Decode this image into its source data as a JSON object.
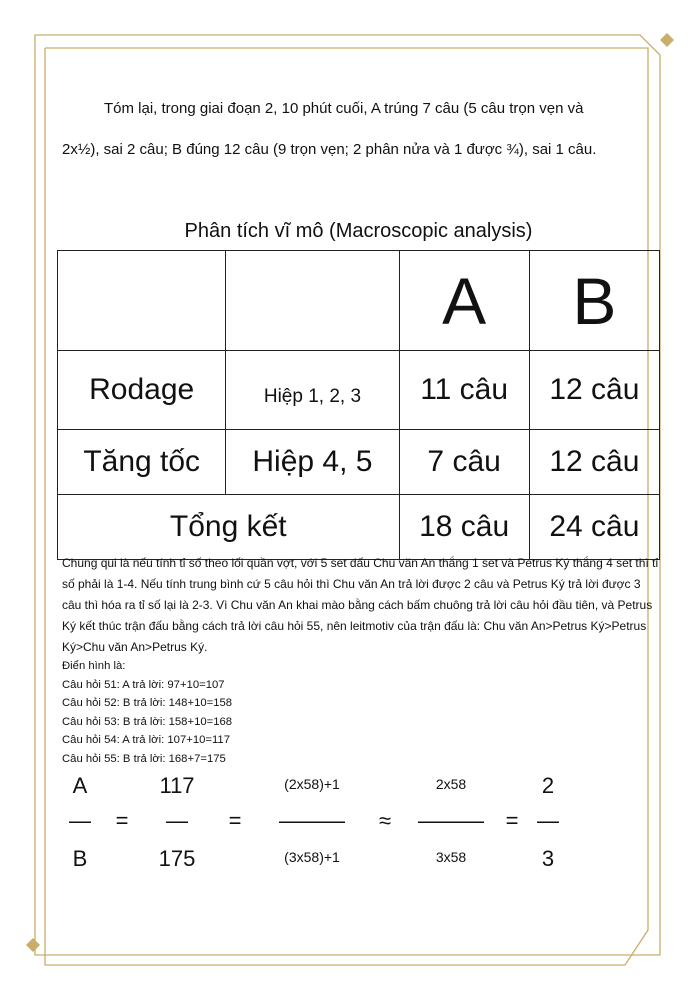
{
  "intro": "Tóm lại, trong giai đoạn 2, 10 phút cuối, A trúng 7 câu (5 câu trọn vẹn và 2x½), sai 2 câu; B đúng 12 câu (9 trọn vẹn; 2 phân nửa và 1 được ¾), sai 1 câu.",
  "table": {
    "title": "Phân tích vĩ mô (Macroscopic analysis)",
    "headers": [
      "",
      "",
      "A",
      "B"
    ],
    "rows": [
      [
        "Rodage",
        "Hiệp 1, 2, 3",
        "11 câu",
        "12 câu"
      ],
      [
        "Tăng tốc",
        "Hiệp 4, 5",
        "7 câu",
        "12 câu"
      ],
      [
        "Tổng kết",
        "18 câu",
        "24 câu"
      ]
    ]
  },
  "paragraph": "Chung qui là nếu tính tỉ số theo lối quần vợt, với 5 set đấu Chu văn An thắng 1 set và Petrus Ký thắng 4 set thì tỉ số phải là 1-4. Nếu tính trung bình cứ 5 câu hỏi thì Chu văn An trả lời được 2 câu và Petrus Ký trả lời được 3 câu thì hóa ra tỉ số lại là 2-3. Vì Chu văn An khai mào bằng cách bấm chuông trả lời câu hỏi đầu tiên, và Petrus Ký kết thúc trận đấu bằng cách trả lời câu hỏi 55, nên leitmotiv của trận đấu là: Chu văn An>Petrus Ký>Petrus Ký>Chu văn An>Petrus Ký.",
  "examples": {
    "heading": "Điển hình là:",
    "items": [
      "Câu hỏi 51: A trả lời: 97+10=107",
      "Câu hỏi 52: B trả lời: 148+10=158",
      "Câu hỏi 53: B trả lời: 158+10=168",
      "Câu hỏi 54: A trả lời: 107+10=117",
      "Câu hỏi 55: B trả lời: 168+7=175"
    ]
  },
  "equation": {
    "top": [
      "A",
      "117",
      "(2x58)+1",
      "2x58",
      "2"
    ],
    "bottom": [
      "B",
      "175",
      "(3x58)+1",
      "3x58",
      "3"
    ],
    "bars": [
      "—",
      "—",
      "———",
      "———",
      "—"
    ],
    "ops": [
      "=",
      "=",
      "≈",
      "="
    ]
  },
  "colors": {
    "frame": "#c9ad6a"
  }
}
